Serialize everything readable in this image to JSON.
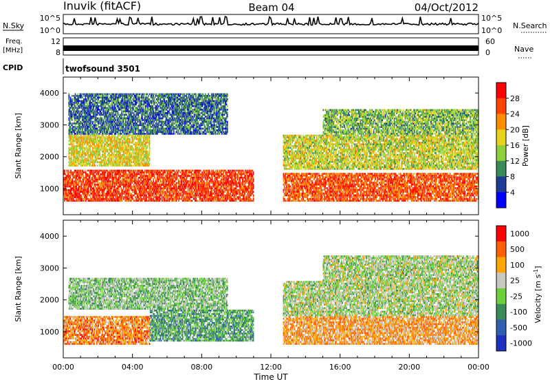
{
  "header": {
    "station": "Inuvik (fitACF)",
    "beam": "Beam 04",
    "date": "04/Oct/2012"
  },
  "params": {
    "nsky_label": "N.Sky",
    "nsky_ticks": [
      "10^5",
      "10^0"
    ],
    "nsearch_label": "N.Search",
    "freq_label_1": "Freq.",
    "freq_label_2": "[MHz]",
    "freq_ticks": [
      "12",
      "8"
    ],
    "nave_label": "Nave",
    "nave_ticks": [
      "60",
      "0"
    ],
    "cpid_label": "CPID",
    "cpid_value": "twofsound 3501"
  },
  "chart_data": [
    {
      "type": "heatmap",
      "name": "power",
      "xlabel": "Time UT",
      "ylabel": "Slant Range [km]",
      "y_ticks": [
        1000,
        2000,
        3000,
        4000
      ],
      "ylim": [
        180,
        4500
      ],
      "xlim_hours": [
        0,
        24
      ],
      "colorbar": {
        "label": "Power [dB]",
        "ticks": [
          "4",
          "8",
          "12",
          "16",
          "20",
          "24",
          "28"
        ],
        "colors": [
          "#0000ff",
          "#1e3c96",
          "#3a8a5a",
          "#8ecf3c",
          "#e8d21e",
          "#ff8c00",
          "#ff4400",
          "#ff0000"
        ]
      },
      "bands": [
        {
          "t0": 0.0,
          "t1": 11.0,
          "r0": 600,
          "r1": 1600,
          "level": 0.85
        },
        {
          "t0": 0.3,
          "t1": 5.0,
          "r0": 1700,
          "r1": 2700,
          "level": 0.55
        },
        {
          "t0": 0.3,
          "t1": 9.5,
          "r0": 2700,
          "r1": 4000,
          "level": 0.25
        },
        {
          "t0": 12.7,
          "t1": 24.0,
          "r0": 600,
          "r1": 1500,
          "level": 0.8
        },
        {
          "t0": 12.7,
          "t1": 24.0,
          "r0": 1600,
          "r1": 2700,
          "level": 0.5
        },
        {
          "t0": 15.0,
          "t1": 24.0,
          "r0": 2700,
          "r1": 3500,
          "level": 0.4
        }
      ]
    },
    {
      "type": "heatmap",
      "name": "velocity",
      "xlabel": "Time UT",
      "ylabel": "Slant Range [km]",
      "y_ticks": [
        1000,
        2000,
        3000,
        4000
      ],
      "ylim": [
        180,
        4500
      ],
      "xlim_hours": [
        0,
        24
      ],
      "colorbar": {
        "label": "Velocity [m s^-1]",
        "ticks": [
          "1000",
          "500",
          "100",
          "25",
          "-25",
          "-100",
          "-500",
          "-1000"
        ],
        "colors": [
          "#1f2fbf",
          "#2f5fae",
          "#3b8a5a",
          "#6ccf3c",
          "#c8c8c0",
          "#ffa500",
          "#ff6000",
          "#ff0000"
        ]
      },
      "bands": [
        {
          "t0": 0.0,
          "t1": 5.0,
          "r0": 600,
          "r1": 1500,
          "level": 0.75
        },
        {
          "t0": 5.0,
          "t1": 11.0,
          "r0": 700,
          "r1": 1700,
          "level": 0.35
        },
        {
          "t0": 0.3,
          "t1": 9.5,
          "r0": 1700,
          "r1": 2700,
          "level": 0.45
        },
        {
          "t0": 12.7,
          "t1": 24.0,
          "r0": 600,
          "r1": 1500,
          "level": 0.7
        },
        {
          "t0": 12.7,
          "t1": 24.0,
          "r0": 1500,
          "r1": 2600,
          "level": 0.5
        },
        {
          "t0": 15.0,
          "t1": 24.0,
          "r0": 2600,
          "r1": 3400,
          "level": 0.5
        }
      ]
    }
  ],
  "x_axis": {
    "ticks": [
      "00:00",
      "04:00",
      "08:00",
      "12:00",
      "16:00",
      "20:00",
      "00:00"
    ],
    "label": "Time UT"
  }
}
